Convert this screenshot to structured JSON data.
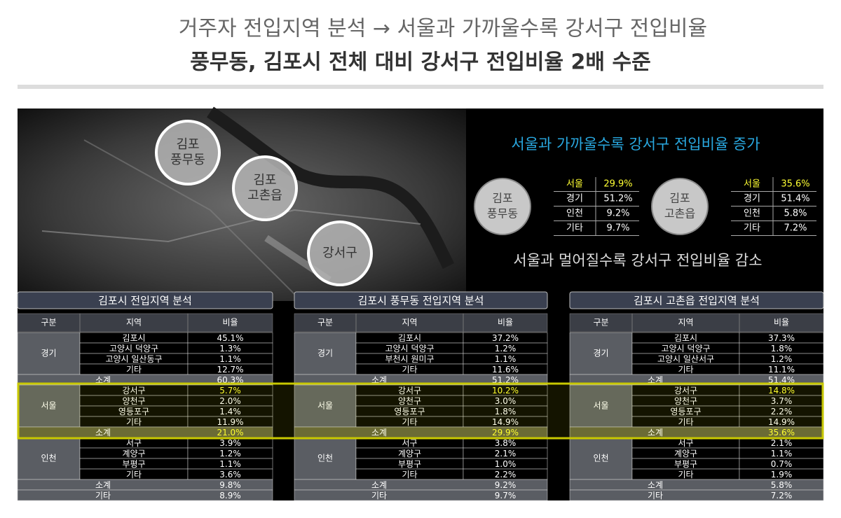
{
  "header": {
    "title": "거주자 전입지역 분석 → 서울과 가까울수록 강서구 전입비율",
    "subtitle": "풍무동, 김포시 전체 대비 강서구 전입비율 2배 수준"
  },
  "map": {
    "labels": [
      [
        "김포",
        "풍무동"
      ],
      [
        "김포",
        "고촌읍"
      ],
      [
        "강서구"
      ]
    ]
  },
  "summary": {
    "increase_text": "서울과 가까울수록 강서구 전입비율 증가",
    "decrease_text": "서울과 멀어질수록 강서구 전입비율 감소",
    "areas": [
      {
        "label": [
          "김포",
          "풍무동"
        ],
        "rows": [
          [
            "서울",
            "29.9%"
          ],
          [
            "경기",
            "51.2%"
          ],
          [
            "인천",
            "9.2%"
          ],
          [
            "기타",
            "9.7%"
          ]
        ]
      },
      {
        "label": [
          "김포",
          "고촌읍"
        ],
        "rows": [
          [
            "서울",
            "35.6%"
          ],
          [
            "경기",
            "51.4%"
          ],
          [
            "인천",
            "5.8%"
          ],
          [
            "기타",
            "7.2%"
          ]
        ]
      }
    ]
  },
  "tables": [
    {
      "title": "김포시 전입지역 분석",
      "columns": [
        "구분",
        "지역",
        "비율"
      ],
      "groups": [
        {
          "name": "경기",
          "rows": [
            [
              "김포시",
              "45.1%"
            ],
            [
              "고양시 덕양구",
              "1.3%"
            ],
            [
              "고양시 일산동구",
              "1.1%"
            ],
            [
              "기타",
              "12.7%"
            ]
          ],
          "subtotal": [
            "소계",
            "60.3%"
          ]
        },
        {
          "name": "서울",
          "rows": [
            [
              "강서구",
              "5.7%"
            ],
            [
              "양천구",
              "2.0%"
            ],
            [
              "영등포구",
              "1.4%"
            ],
            [
              "기타",
              "11.9%"
            ]
          ],
          "subtotal": [
            "소계",
            "21.0%"
          ]
        },
        {
          "name": "인천",
          "rows": [
            [
              "서구",
              "3.9%"
            ],
            [
              "계양구",
              "1.2%"
            ],
            [
              "부평구",
              "1.1%"
            ],
            [
              "기타",
              "3.6%"
            ]
          ],
          "subtotal": [
            "소계",
            "9.8%"
          ]
        }
      ],
      "other": [
        "기타",
        "8.9%"
      ]
    },
    {
      "title": "김포시 풍무동 전입지역 분석",
      "columns": [
        "구분",
        "지역",
        "비율"
      ],
      "groups": [
        {
          "name": "경기",
          "rows": [
            [
              "김포시",
              "37.2%"
            ],
            [
              "고양시 덕양구",
              "1.2%"
            ],
            [
              "부천시 원미구",
              "1.1%"
            ],
            [
              "기타",
              "11.6%"
            ]
          ],
          "subtotal": [
            "소계",
            "51.2%"
          ]
        },
        {
          "name": "서울",
          "rows": [
            [
              "강서구",
              "10.2%"
            ],
            [
              "양천구",
              "3.0%"
            ],
            [
              "영등포구",
              "1.8%"
            ],
            [
              "기타",
              "14.9%"
            ]
          ],
          "subtotal": [
            "소계",
            "29.9%"
          ]
        },
        {
          "name": "인천",
          "rows": [
            [
              "서구",
              "3.8%"
            ],
            [
              "계양구",
              "2.1%"
            ],
            [
              "부평구",
              "1.0%"
            ],
            [
              "기타",
              "2.2%"
            ]
          ],
          "subtotal": [
            "소계",
            "9.2%"
          ]
        }
      ],
      "other": [
        "기타",
        "9.7%"
      ]
    },
    {
      "title": "김포시 고촌읍 전입지역 분석",
      "columns": [
        "구분",
        "지역",
        "비율"
      ],
      "groups": [
        {
          "name": "경기",
          "rows": [
            [
              "김포시",
              "37.3%"
            ],
            [
              "고양시 덕양구",
              "1.8%"
            ],
            [
              "고양시 일산서구",
              "1.2%"
            ],
            [
              "기타",
              "11.1%"
            ]
          ],
          "subtotal": [
            "소계",
            "51.4%"
          ]
        },
        {
          "name": "서울",
          "rows": [
            [
              "강서구",
              "14.8%"
            ],
            [
              "양천구",
              "3.7%"
            ],
            [
              "영등포구",
              "2.2%"
            ],
            [
              "기타",
              "14.9%"
            ]
          ],
          "subtotal": [
            "소계",
            "35.6%"
          ]
        },
        {
          "name": "인천",
          "rows": [
            [
              "서구",
              "2.1%"
            ],
            [
              "계양구",
              "1.1%"
            ],
            [
              "부평구",
              "0.7%"
            ],
            [
              "기타",
              "1.9%"
            ]
          ],
          "subtotal": [
            "소계",
            "5.8%"
          ]
        }
      ],
      "other": [
        "기타",
        "7.2%"
      ]
    }
  ]
}
